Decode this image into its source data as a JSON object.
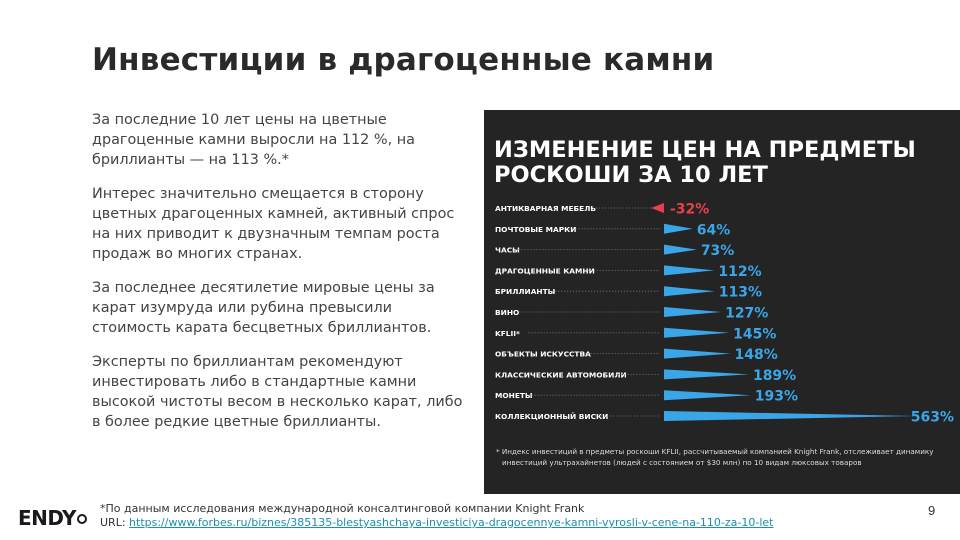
{
  "slide": {
    "title": "Инвестиции в драгоценные камни",
    "paragraphs": [
      "За последние 10 лет цены на цветные драгоценные камни выросли на 112 %, на бриллианты — на 113 %.*",
      "Интерес значительно смещается в сторону цветных драгоценных камней, активный спрос на них приводит к двузначным темпам роста продаж во многих странах.",
      "За последнее десятилетие мировые цены за карат изумруда или рубина превысили стоимость карата бесцветных бриллиантов.",
      "Эксперты по бриллиантам рекомендуют инвестировать либо в стандартные камни высокой чистоты весом в несколько карат, либо в более редкие цветные бриллианты."
    ],
    "footnote_line1": "*По данным исследования международной консалтинговой компании Knight Frank",
    "footnote_url_label": "URL: ",
    "footnote_url": "https://www.forbes.ru/biznes/385135-blestyashchaya-investiciya-dragocennye-kamni-vyrosli-v-cene-na-110-za-10-let",
    "page_number": "9",
    "logo_text": "ENDY"
  },
  "colors": {
    "positive": "#3aa6e8",
    "negative": "#e8404a",
    "panel_bg": "#242424",
    "label_text": "#ffffff"
  },
  "chart_data": {
    "type": "bar",
    "title_line1": "ИЗМЕНЕНИЕ ЦЕН НА ПРЕДМЕТЫ",
    "title_line2": "РОСКОШИ ЗА 10 ЛЕТ",
    "categories": [
      "АНТИКВАРНАЯ МЕБЕЛЬ",
      "ПОЧТОВЫЕ МАРКИ",
      "ЧАСЫ",
      "ДРАГОЦЕННЫЕ КАМНИ",
      "БРИЛЛИАНТЫ",
      "ВИНО",
      "KFLII*",
      "ОБЪЕКТЫ ИСКУССТВА",
      "КЛАССИЧЕСКИЕ АВТОМОБИЛИ",
      "МОНЕТЫ",
      "КОЛЛЕКЦИОННЫЙ ВИСКИ"
    ],
    "values": [
      -32,
      64,
      73,
      112,
      113,
      127,
      145,
      148,
      189,
      193,
      563
    ],
    "value_labels": [
      "-32%",
      "64%",
      "73%",
      "112%",
      "113%",
      "127%",
      "145%",
      "148%",
      "189%",
      "193%",
      "563%"
    ],
    "footnote_line1": "* Индекс инвестиций в предметы роскоши KFLII, рассчитываемый компанией Knight Frank, отслеживает динамику",
    "footnote_line2": "инвестиций ультрахайнетов (людей с состоянием от $30 млн) по 10 видам люксовых товаров",
    "grid": false,
    "legend": "none"
  }
}
